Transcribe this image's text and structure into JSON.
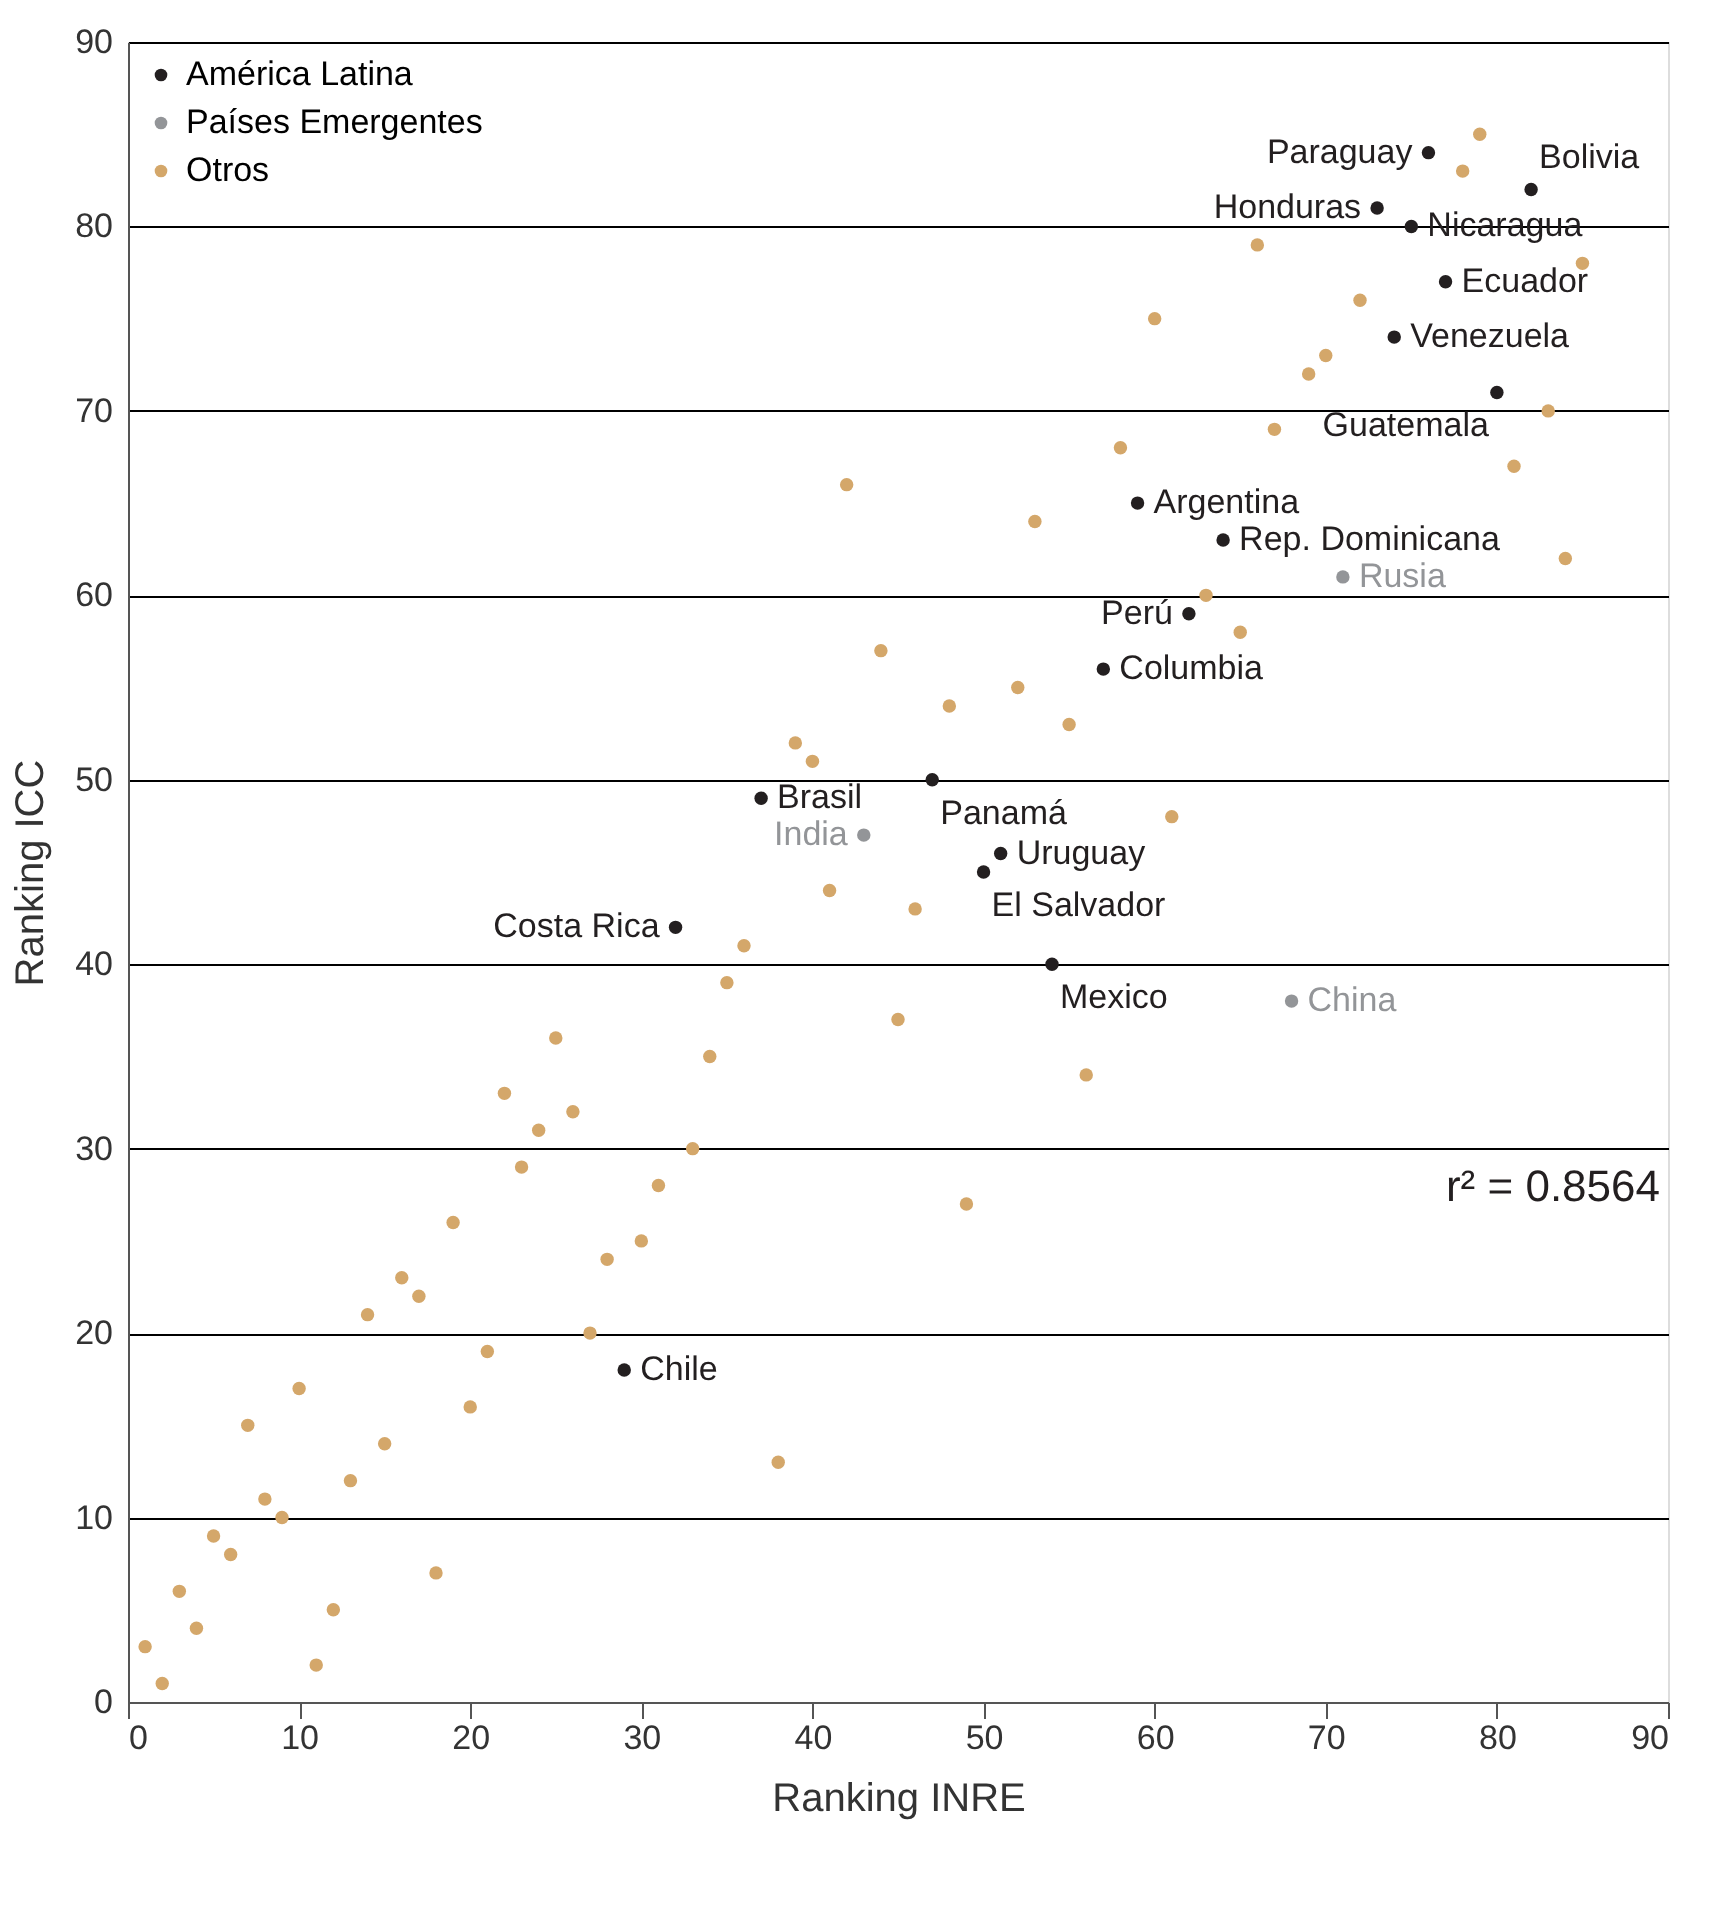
{
  "chart_data": {
    "type": "scatter",
    "xlabel": "Ranking INRE",
    "ylabel": "Ranking ICC",
    "xlim": [
      0,
      90
    ],
    "ylim": [
      0,
      90
    ],
    "xticks": [
      0,
      10,
      20,
      30,
      40,
      50,
      60,
      70,
      80,
      90
    ],
    "yticks": [
      0,
      10,
      20,
      30,
      40,
      50,
      60,
      70,
      80,
      90
    ],
    "grid": "y",
    "legend": "top left",
    "marker": "circle",
    "series": [
      {
        "name": "América Latina",
        "color": "#231f20",
        "x": [
          29,
          32,
          37,
          47,
          50,
          51,
          54,
          57,
          59,
          62,
          64,
          73,
          74,
          75,
          76,
          77,
          80,
          82
        ],
        "values": [
          18,
          42,
          49,
          50,
          45,
          46,
          40,
          56,
          65,
          59,
          63,
          81,
          74,
          80,
          84,
          77,
          71,
          82
        ]
      },
      {
        "name": "Países Emergentes",
        "color": "#939598",
        "x": [
          43,
          68,
          71
        ],
        "values": [
          47,
          38,
          61
        ]
      },
      {
        "name": "Otros",
        "color": "#d4a76a",
        "x": [
          1,
          2,
          3,
          4,
          5,
          6,
          7,
          8,
          9,
          10,
          11,
          12,
          13,
          14,
          15,
          16,
          17,
          18,
          19,
          20,
          21,
          22,
          23,
          24,
          25,
          26,
          27,
          28,
          30,
          31,
          33,
          34,
          35,
          36,
          38,
          39,
          40,
          41,
          42,
          44,
          45,
          46,
          48,
          49,
          52,
          53,
          55,
          56,
          58,
          60,
          61,
          63,
          65,
          66,
          67,
          69,
          70,
          72,
          78,
          79,
          81,
          83,
          84,
          85
        ],
        "values": [
          3,
          1,
          6,
          4,
          9,
          8,
          15,
          11,
          10,
          17,
          2,
          5,
          12,
          21,
          14,
          23,
          22,
          7,
          26,
          16,
          19,
          33,
          29,
          31,
          36,
          32,
          20,
          24,
          25,
          28,
          30,
          35,
          39,
          41,
          13,
          52,
          51,
          44,
          66,
          57,
          37,
          43,
          54,
          27,
          55,
          64,
          53,
          34,
          68,
          75,
          48,
          60,
          58,
          79,
          69,
          72,
          73,
          76,
          83,
          85,
          67,
          70,
          62,
          78
        ]
      }
    ],
    "annotations": [
      {
        "text": "Chile",
        "x": 29,
        "y": 18
      },
      {
        "text": "Costa Rica",
        "x": 32,
        "y": 42
      },
      {
        "text": "Brasil",
        "x": 37,
        "y": 49
      },
      {
        "text": "Panamá",
        "x": 47,
        "y": 50
      },
      {
        "text": "El Salvador",
        "x": 50,
        "y": 45
      },
      {
        "text": "Uruguay",
        "x": 51,
        "y": 46
      },
      {
        "text": "Mexico",
        "x": 54,
        "y": 40
      },
      {
        "text": "Columbia",
        "x": 57,
        "y": 56
      },
      {
        "text": "Argentina",
        "x": 59,
        "y": 65
      },
      {
        "text": "Perú",
        "x": 62,
        "y": 59
      },
      {
        "text": "Rep. Dominicana",
        "x": 64,
        "y": 63
      },
      {
        "text": "Honduras",
        "x": 73,
        "y": 81
      },
      {
        "text": "Venezuela",
        "x": 74,
        "y": 74
      },
      {
        "text": "Nicaragua",
        "x": 75,
        "y": 80
      },
      {
        "text": "Paraguay",
        "x": 76,
        "y": 84
      },
      {
        "text": "Ecuador",
        "x": 77,
        "y": 77
      },
      {
        "text": "Guatemala",
        "x": 80,
        "y": 71
      },
      {
        "text": "Bolivia",
        "x": 82,
        "y": 82
      },
      {
        "text": "India",
        "x": 43,
        "y": 47
      },
      {
        "text": "China",
        "x": 68,
        "y": 38
      },
      {
        "text": "Rusia",
        "x": 71,
        "y": 61
      },
      "r² = 0.8564"
    ]
  }
}
